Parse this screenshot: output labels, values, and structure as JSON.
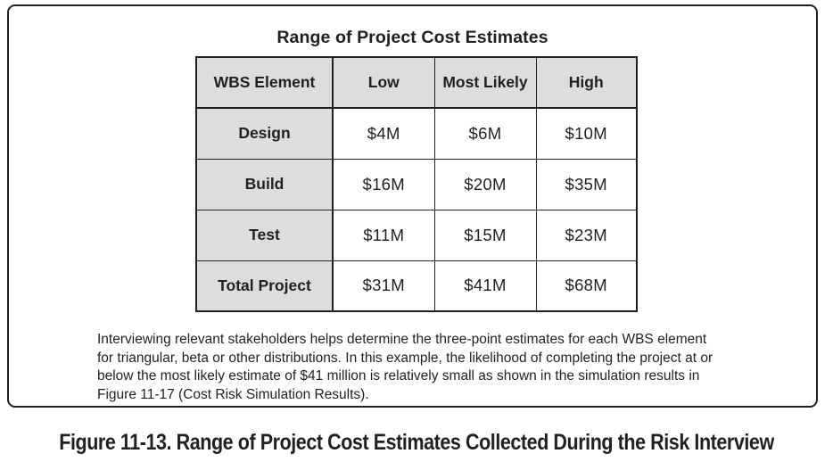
{
  "table": {
    "title": "Range of Project Cost Estimates",
    "headers": [
      "WBS Element",
      "Low",
      "Most Likely",
      "High"
    ],
    "rows": [
      {
        "element": "Design",
        "low": "$4M",
        "most_likely": "$6M",
        "high": "$10M"
      },
      {
        "element": "Build",
        "low": "$16M",
        "most_likely": "$20M",
        "high": "$35M"
      },
      {
        "element": "Test",
        "low": "$11M",
        "most_likely": "$15M",
        "high": "$23M"
      },
      {
        "element": "Total Project",
        "low": "$31M",
        "most_likely": "$41M",
        "high": "$68M"
      }
    ]
  },
  "description": "Interviewing relevant stakeholders helps determine the three-point estimates for each WBS element for triangular, beta or other distributions. In this example, the likelihood of completing the project at or below the most likely estimate of $41 million is relatively small as shown in the simulation results in Figure 11-17 (Cost Risk Simulation Results).",
  "caption": "Figure 11-13. Range of Project Cost Estimates Collected During the Risk Interview"
}
